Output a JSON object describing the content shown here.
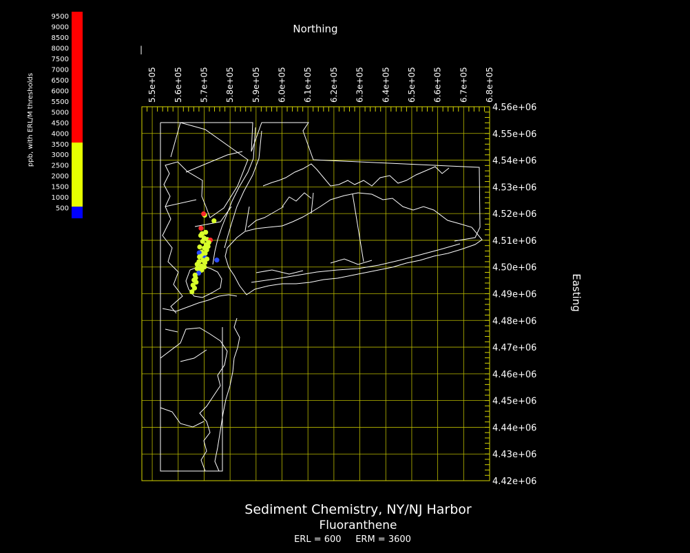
{
  "titles": {
    "main": "Sediment Chemistry, NY/NJ Harbor",
    "analyte": "Fluoranthene",
    "thresholds": "ERL = 600     ERM = 3600",
    "top_axis": "Northing",
    "right_axis": "Easting"
  },
  "legend": {
    "label": "ppb, with ERL/M thresholds",
    "ticks": [
      "9500",
      "9000",
      "8500",
      "8000",
      "7500",
      "7000",
      "6500",
      "6000",
      "5500",
      "5000",
      "4500",
      "4000",
      "3500",
      "3000",
      "2500",
      "2000",
      "1500",
      "1000",
      "500"
    ],
    "bands": [
      {
        "name": "above ERM",
        "color": "#ff0000",
        "from": 3600,
        "to": 9700
      },
      {
        "name": "ERL to ERM",
        "color": "#e6ff00",
        "from": 600,
        "to": 3600
      },
      {
        "name": "below ERL",
        "color": "#0000ff",
        "from": 0,
        "to": 600
      }
    ]
  },
  "chart_data": {
    "type": "scatter",
    "xaxis_ticks": [
      "5.5e+05",
      "5.6e+05",
      "5.7e+05",
      "5.8e+05",
      "5.9e+05",
      "6.0e+05",
      "6.1e+05",
      "6.2e+05",
      "6.3e+05",
      "6.4e+05",
      "6.5e+05",
      "6.6e+05",
      "6.7e+05",
      "6.8e+05"
    ],
    "xaxis_values": [
      550000,
      560000,
      570000,
      580000,
      590000,
      600000,
      610000,
      620000,
      630000,
      640000,
      650000,
      660000,
      670000,
      680000
    ],
    "xlim": [
      546000,
      680000
    ],
    "yaxis_ticks": [
      "4.56e+06",
      "4.55e+06",
      "4.54e+06",
      "4.53e+06",
      "4.52e+06",
      "4.51e+06",
      "4.50e+06",
      "4.49e+06",
      "4.48e+06",
      "4.47e+06",
      "4.46e+06",
      "4.45e+06",
      "4.44e+06",
      "4.43e+06",
      "4.42e+06"
    ],
    "yaxis_values": [
      4560000,
      4550000,
      4540000,
      4530000,
      4520000,
      4510000,
      4500000,
      4490000,
      4480000,
      4470000,
      4460000,
      4450000,
      4440000,
      4430000,
      4420000
    ],
    "ylim": [
      4420000,
      4560000
    ],
    "grid": true,
    "color_scale": "legend",
    "points": [
      {
        "x": 570200,
        "y": 4519400,
        "c": "ERL-ERM"
      },
      {
        "x": 569800,
        "y": 4519900,
        "c": "above ERM"
      },
      {
        "x": 573800,
        "y": 4517300,
        "c": "ERL-ERM"
      },
      {
        "x": 568800,
        "y": 4514500,
        "c": "above ERM"
      },
      {
        "x": 570600,
        "y": 4513000,
        "c": "ERL-ERM"
      },
      {
        "x": 569200,
        "y": 4512500,
        "c": "ERL-ERM"
      },
      {
        "x": 568700,
        "y": 4511800,
        "c": "ERL-ERM"
      },
      {
        "x": 570000,
        "y": 4510800,
        "c": "ERL-ERM"
      },
      {
        "x": 571200,
        "y": 4510300,
        "c": "ERL-ERM"
      },
      {
        "x": 572400,
        "y": 4510100,
        "c": "above ERM"
      },
      {
        "x": 569400,
        "y": 4509600,
        "c": "ERL-ERM"
      },
      {
        "x": 571800,
        "y": 4509200,
        "c": "ERL-ERM"
      },
      {
        "x": 570800,
        "y": 4508400,
        "c": "ERL-ERM"
      },
      {
        "x": 571500,
        "y": 4507700,
        "c": "ERL-ERM"
      },
      {
        "x": 568300,
        "y": 4507500,
        "c": "ERL-ERM"
      },
      {
        "x": 570100,
        "y": 4507100,
        "c": "ERL-ERM"
      },
      {
        "x": 571000,
        "y": 4506400,
        "c": "ERL-ERM"
      },
      {
        "x": 569000,
        "y": 4505600,
        "c": "ERL-ERM"
      },
      {
        "x": 568100,
        "y": 4505300,
        "c": "below ERL"
      },
      {
        "x": 570400,
        "y": 4505100,
        "c": "ERL-ERM"
      },
      {
        "x": 569200,
        "y": 4504200,
        "c": "ERL-ERM"
      },
      {
        "x": 568200,
        "y": 4503800,
        "c": "ERL-ERM"
      },
      {
        "x": 570300,
        "y": 4503400,
        "c": "below ERL"
      },
      {
        "x": 571100,
        "y": 4503000,
        "c": "ERL-ERM"
      },
      {
        "x": 569500,
        "y": 4502500,
        "c": "ERL-ERM"
      },
      {
        "x": 568000,
        "y": 4502000,
        "c": "ERL-ERM"
      },
      {
        "x": 570300,
        "y": 4501600,
        "c": "ERL-ERM"
      },
      {
        "x": 567300,
        "y": 4501000,
        "c": "ERL-ERM"
      },
      {
        "x": 568900,
        "y": 4500400,
        "c": "ERL-ERM"
      },
      {
        "x": 570100,
        "y": 4500000,
        "c": "ERL-ERM"
      },
      {
        "x": 567300,
        "y": 4499400,
        "c": "ERL-ERM"
      },
      {
        "x": 568100,
        "y": 4499000,
        "c": "ERL-ERM"
      },
      {
        "x": 569000,
        "y": 4498800,
        "c": "ERL-ERM"
      },
      {
        "x": 567900,
        "y": 4497700,
        "c": "below ERL"
      },
      {
        "x": 566500,
        "y": 4497000,
        "c": "ERL-ERM"
      },
      {
        "x": 566700,
        "y": 4495900,
        "c": "ERL-ERM"
      },
      {
        "x": 566100,
        "y": 4495100,
        "c": "ERL-ERM"
      },
      {
        "x": 566900,
        "y": 4494300,
        "c": "ERL-ERM"
      },
      {
        "x": 565700,
        "y": 4493200,
        "c": "ERL-ERM"
      },
      {
        "x": 566300,
        "y": 4492100,
        "c": "ERL-ERM"
      },
      {
        "x": 565300,
        "y": 4490700,
        "c": "ERL-ERM"
      },
      {
        "x": 574900,
        "y": 4502600,
        "c": "below ERL"
      }
    ]
  },
  "colors": {
    "above ERM": "#ff2a2a",
    "ERL-ERM": "#d8ff2a",
    "below ERL": "#2b4cff"
  }
}
